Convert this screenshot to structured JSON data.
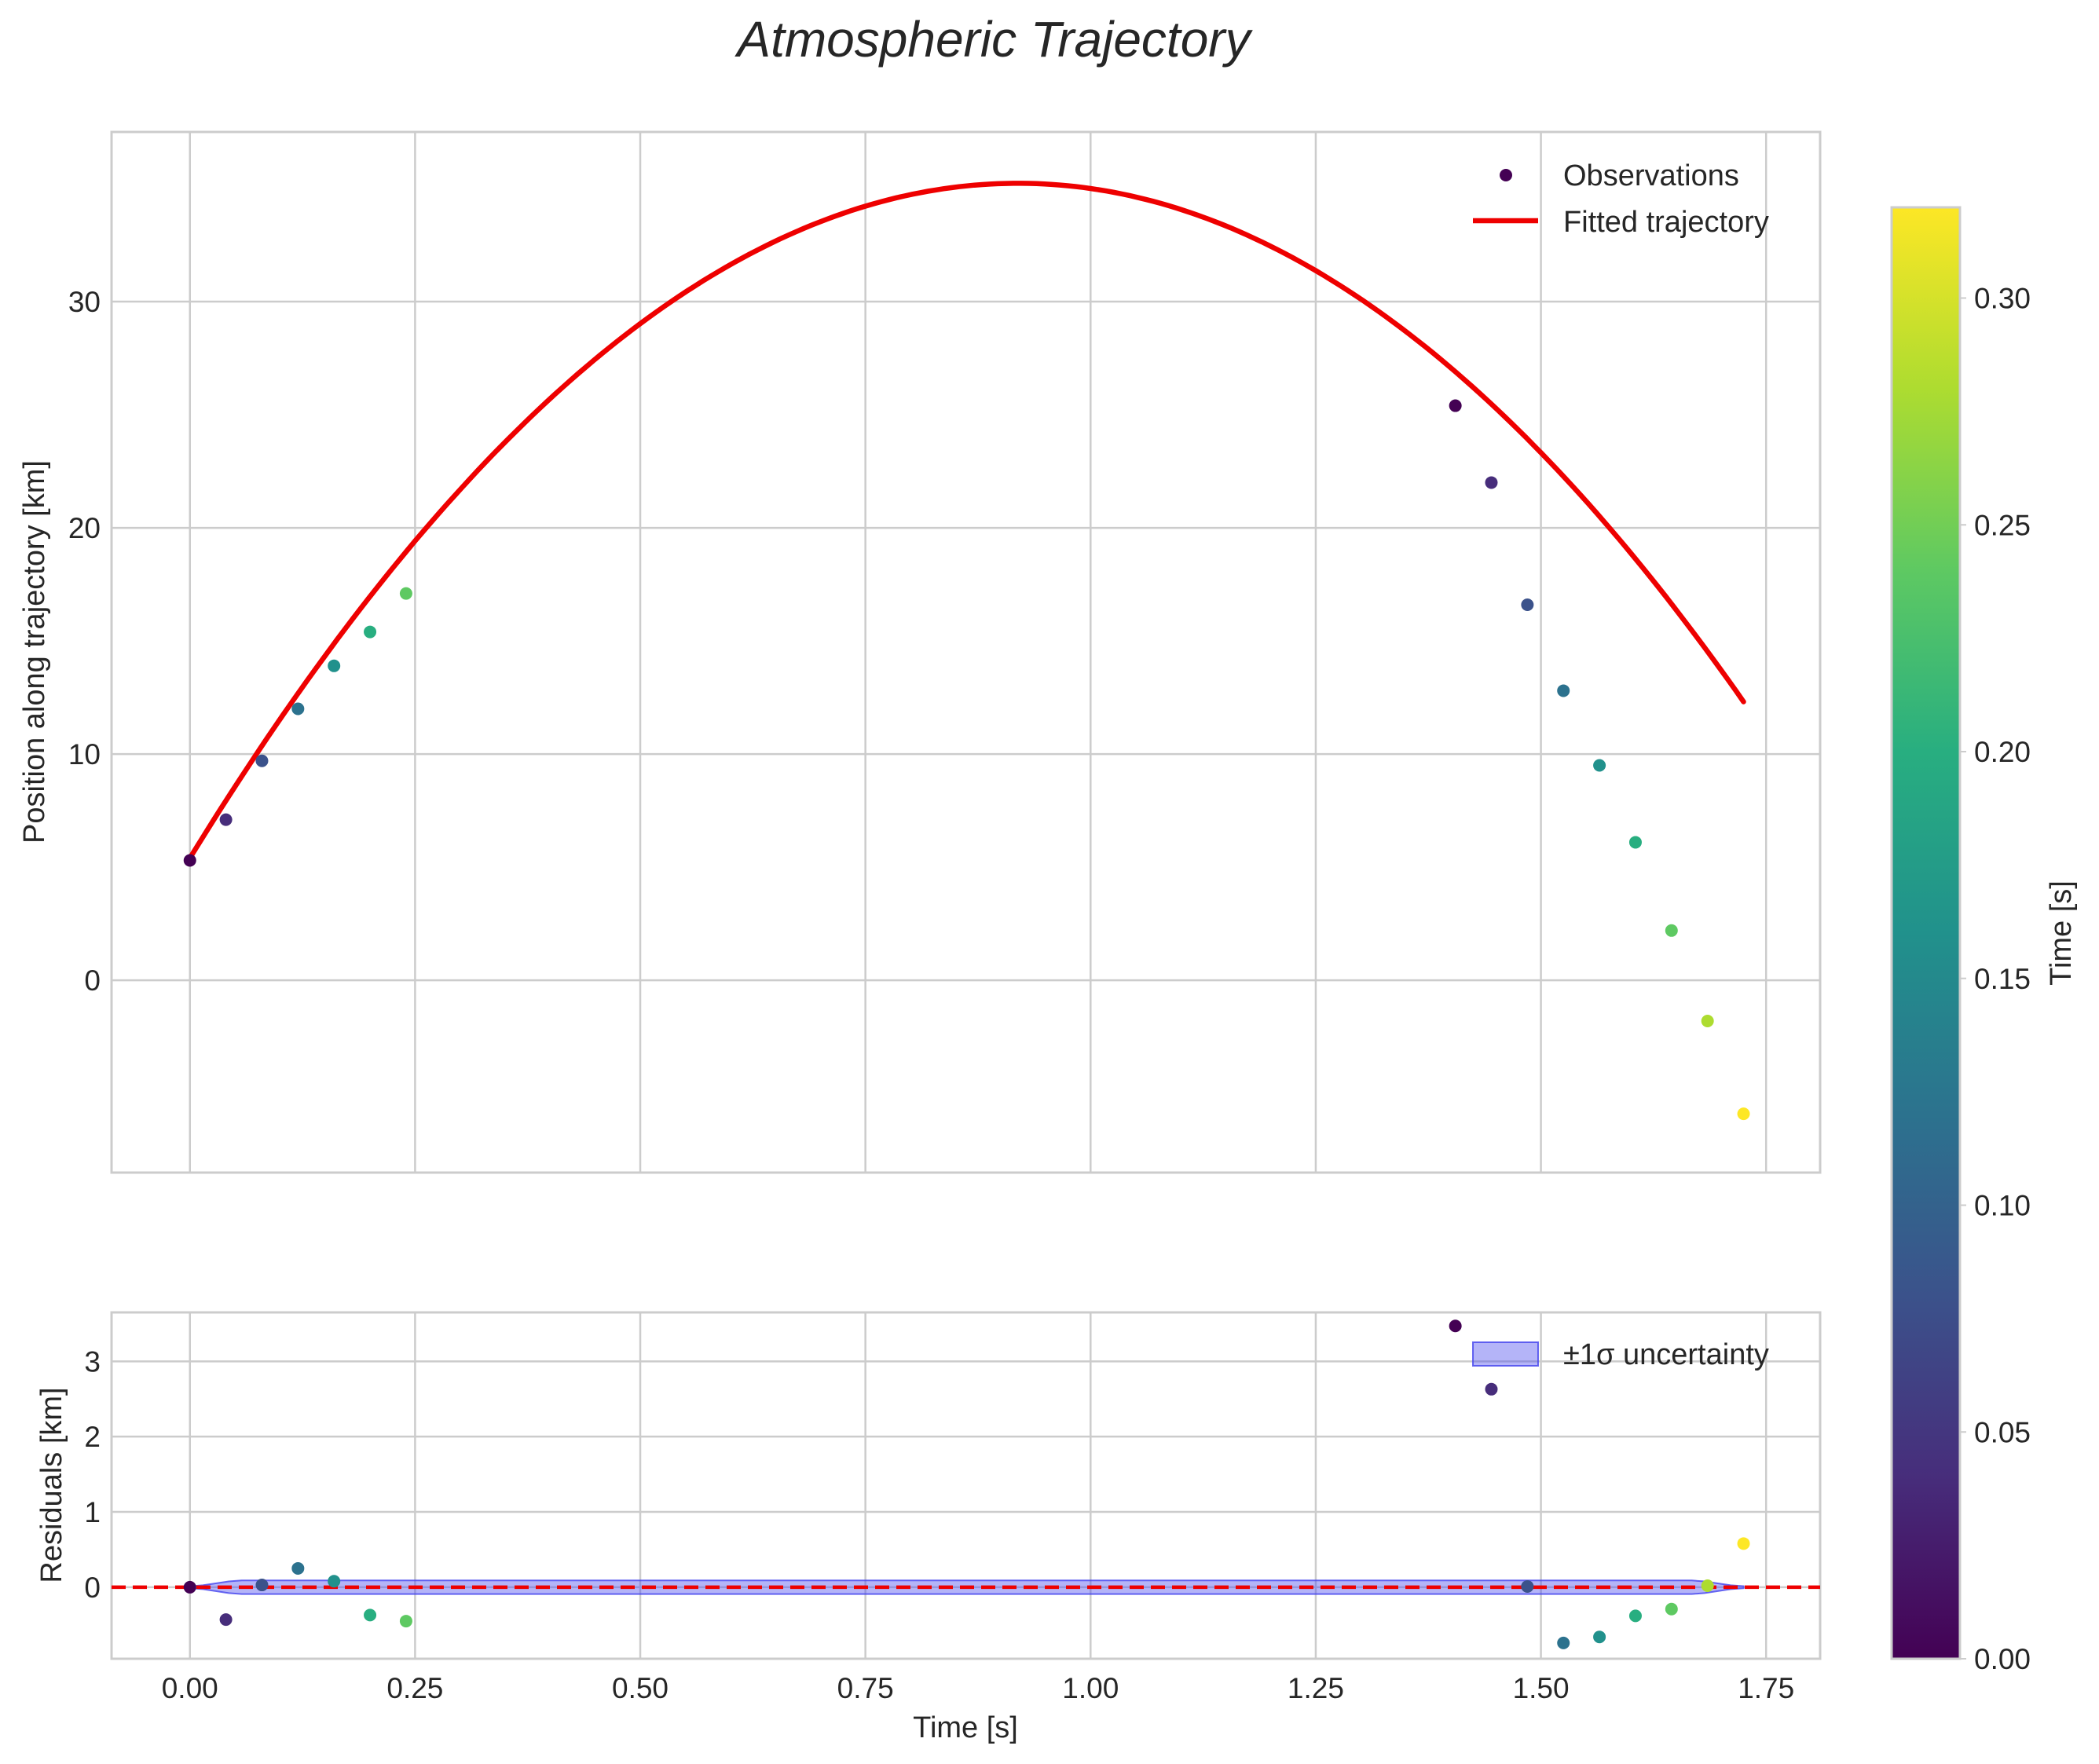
{
  "chart_data": {
    "type": "scatter",
    "title": "Atmospheric Trajectory",
    "colors": {
      "fit": "#ee0000",
      "band_fill": "#4444ee",
      "zero_line": "#ee0000",
      "grid": "#cccccc",
      "text": "#262626"
    },
    "main": {
      "ylabel": "Position along trajectory [km]",
      "xlim": [
        -0.087,
        1.81
      ],
      "ylim": [
        -8.5,
        37.5
      ],
      "xticks": [
        0,
        0.25,
        0.5,
        0.75,
        1.0,
        1.25,
        1.5,
        1.75
      ],
      "yticks": [
        0,
        10,
        20,
        30
      ],
      "ytick_labels": [
        "0",
        "10",
        "20",
        "30"
      ],
      "observations": {
        "name": "Observations",
        "t": [
          0.0,
          0.04,
          0.08,
          0.12,
          0.16,
          0.2,
          0.24,
          1.405,
          1.445,
          1.485,
          1.525,
          1.565,
          1.605,
          1.645,
          1.685,
          1.725
        ],
        "y": [
          5.3,
          7.1,
          9.7,
          12.0,
          13.9,
          15.4,
          17.1,
          25.4,
          22.0,
          16.6,
          12.8,
          9.5,
          6.1,
          2.2,
          -1.8,
          -5.9
        ],
        "c": [
          0.0,
          0.04,
          0.08,
          0.12,
          0.16,
          0.2,
          0.24,
          0.0,
          0.04,
          0.08,
          0.12,
          0.16,
          0.2,
          0.24,
          0.28,
          0.32
        ]
      },
      "fit": {
        "name": "Fitted trajectory",
        "coefficients": {
          "a": -35.3,
          "b": 64.9,
          "c": 5.4
        },
        "t_range": [
          0.0,
          1.725
        ]
      },
      "legend_position": "top-right"
    },
    "residuals": {
      "ylabel": "Residuals [km]",
      "xlabel": "Time [s]",
      "xlim": [
        -0.087,
        1.81
      ],
      "ylim": [
        -0.95,
        3.65
      ],
      "xticks": [
        0,
        0.25,
        0.5,
        0.75,
        1.0,
        1.25,
        1.5,
        1.75
      ],
      "xtick_labels": [
        "0.00",
        "0.25",
        "0.50",
        "0.75",
        "1.00",
        "1.25",
        "1.50",
        "1.75"
      ],
      "yticks": [
        0,
        1,
        2,
        3
      ],
      "ytick_labels": [
        "0",
        "1",
        "2",
        "3"
      ],
      "values": [
        0.0,
        -0.43,
        0.03,
        0.25,
        0.08,
        -0.37,
        -0.45,
        3.47,
        2.63,
        0.01,
        -0.74,
        -0.66,
        -0.38,
        -0.29,
        0.02,
        0.58
      ],
      "band": {
        "name": "±1σ uncertainty",
        "sigma": 0.09
      },
      "legend_position": "top-right"
    },
    "colorbar": {
      "label": "Time [s]",
      "range": [
        0.0,
        0.32
      ],
      "ticks": [
        0.0,
        0.05,
        0.1,
        0.15,
        0.2,
        0.25,
        0.3
      ],
      "tick_labels": [
        "0.00",
        "0.05",
        "0.10",
        "0.15",
        "0.20",
        "0.25",
        "0.30"
      ],
      "colormap": "viridis"
    }
  }
}
